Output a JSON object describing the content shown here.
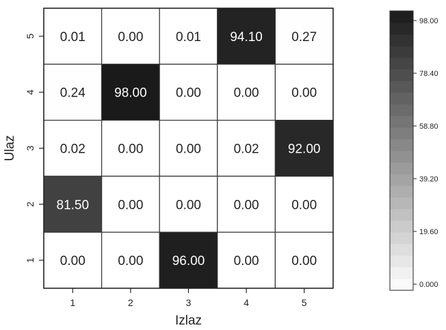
{
  "chart_data": {
    "type": "heatmap",
    "title": "",
    "xlabel": "Izlaz",
    "ylabel": "Ulaz",
    "x_categories": [
      "1",
      "2",
      "3",
      "4",
      "5"
    ],
    "y_categories": [
      "5",
      "4",
      "3",
      "2",
      "1"
    ],
    "values": [
      [
        0.01,
        0.0,
        0.01,
        94.1,
        0.27
      ],
      [
        0.24,
        98.0,
        0.0,
        0.0,
        0.0
      ],
      [
        0.02,
        0.0,
        0.0,
        0.02,
        92.0
      ],
      [
        81.5,
        0.0,
        0.0,
        0.0,
        0.0
      ],
      [
        0.0,
        0.0,
        96.0,
        0.0,
        0.0
      ]
    ],
    "cell_labels": [
      [
        "0.01",
        "0.00",
        "0.01",
        "94.10",
        "0.27"
      ],
      [
        "0.24",
        "98.00",
        "0.00",
        "0.00",
        "0.00"
      ],
      [
        "0.02",
        "0.00",
        "0.00",
        "0.02",
        "92.00"
      ],
      [
        "81.50",
        "0.00",
        "0.00",
        "0.00",
        "0.00"
      ],
      [
        "0.00",
        "0.00",
        "96.00",
        "0.00",
        "0.00"
      ]
    ],
    "colorbar": {
      "range": [
        0,
        98
      ],
      "ticks": [
        98.0,
        78.4,
        58.8,
        39.2,
        19.6,
        0.0
      ],
      "tick_labels": [
        "98.00",
        "78.40",
        "58.80",
        "39.20",
        "19.60",
        "0.000"
      ],
      "low_color": "#ffffff",
      "high_color": "#1a1a1a"
    },
    "grid": true,
    "legend": "colorbar-right"
  }
}
